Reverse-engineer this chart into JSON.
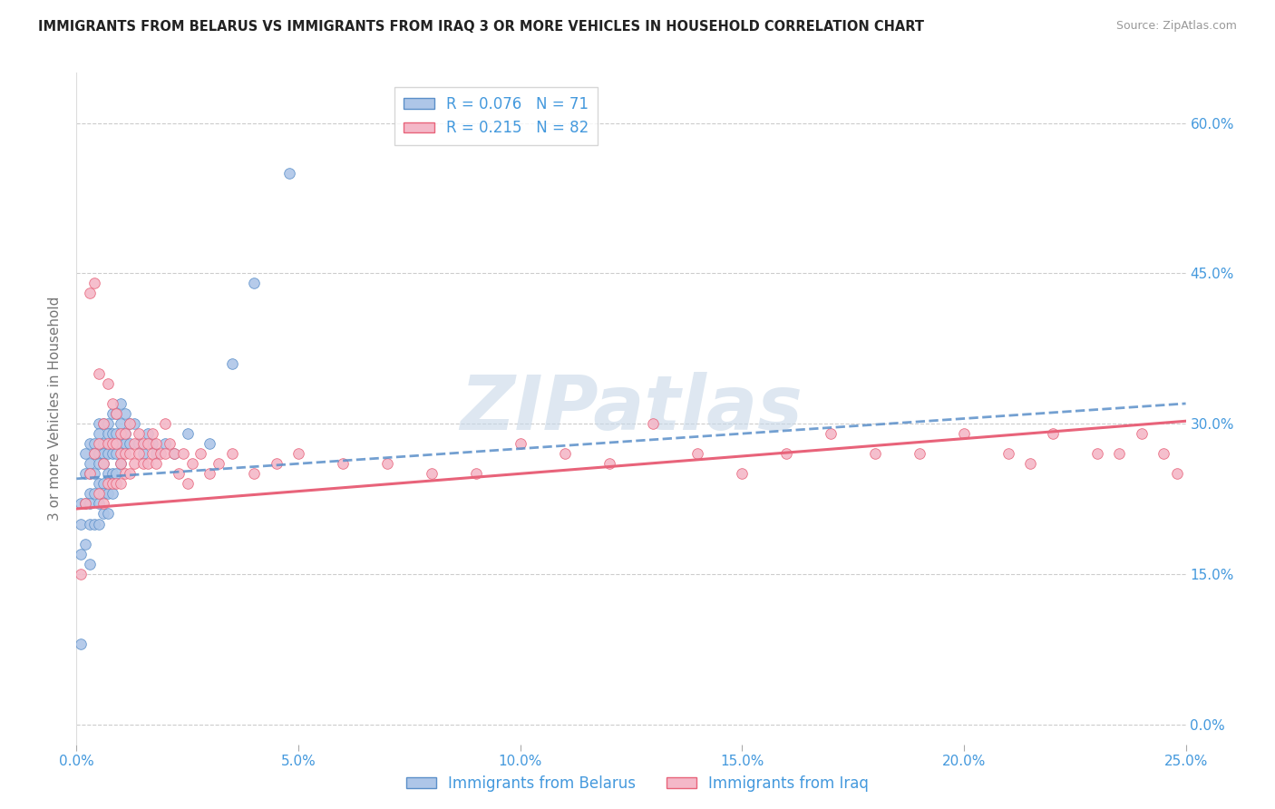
{
  "title": "IMMIGRANTS FROM BELARUS VS IMMIGRANTS FROM IRAQ 3 OR MORE VEHICLES IN HOUSEHOLD CORRELATION CHART",
  "source": "Source: ZipAtlas.com",
  "ylabel": "3 or more Vehicles in Household",
  "legend_label_1": "Immigrants from Belarus",
  "legend_label_2": "Immigrants from Iraq",
  "R1": 0.076,
  "N1": 71,
  "R2": 0.215,
  "N2": 82,
  "xlim": [
    0.0,
    0.25
  ],
  "ylim": [
    -0.02,
    0.65
  ],
  "xticks": [
    0.0,
    0.05,
    0.1,
    0.15,
    0.2,
    0.25
  ],
  "yticks": [
    0.0,
    0.15,
    0.3,
    0.45,
    0.6
  ],
  "ytick_labels": [
    "0.0%",
    "15.0%",
    "30.0%",
    "45.0%",
    "60.0%"
  ],
  "xtick_labels": [
    "0.0%",
    "5.0%",
    "10.0%",
    "15.0%",
    "20.0%",
    "25.0%"
  ],
  "color_belarus": "#aec6e8",
  "color_iraq": "#f4b8c8",
  "color_line_belarus": "#5b8fc9",
  "color_line_iraq": "#e8637a",
  "color_axis_text": "#4499dd",
  "background": "#ffffff",
  "watermark": "ZIPatlas",
  "watermark_color": "#c8d8e8",
  "belarus_x": [
    0.001,
    0.001,
    0.001,
    0.001,
    0.002,
    0.002,
    0.002,
    0.002,
    0.003,
    0.003,
    0.003,
    0.003,
    0.003,
    0.003,
    0.003,
    0.004,
    0.004,
    0.004,
    0.004,
    0.004,
    0.005,
    0.005,
    0.005,
    0.005,
    0.005,
    0.005,
    0.005,
    0.006,
    0.006,
    0.006,
    0.006,
    0.006,
    0.006,
    0.006,
    0.007,
    0.007,
    0.007,
    0.007,
    0.007,
    0.007,
    0.008,
    0.008,
    0.008,
    0.008,
    0.008,
    0.009,
    0.009,
    0.009,
    0.009,
    0.01,
    0.01,
    0.01,
    0.01,
    0.011,
    0.011,
    0.011,
    0.012,
    0.012,
    0.013,
    0.014,
    0.015,
    0.016,
    0.017,
    0.018,
    0.02,
    0.022,
    0.025,
    0.03,
    0.035,
    0.04,
    0.048
  ],
  "belarus_y": [
    0.22,
    0.2,
    0.17,
    0.08,
    0.27,
    0.25,
    0.22,
    0.18,
    0.28,
    0.26,
    0.25,
    0.23,
    0.22,
    0.2,
    0.16,
    0.28,
    0.27,
    0.25,
    0.23,
    0.2,
    0.3,
    0.29,
    0.27,
    0.26,
    0.24,
    0.22,
    0.2,
    0.3,
    0.28,
    0.27,
    0.26,
    0.24,
    0.23,
    0.21,
    0.3,
    0.29,
    0.27,
    0.25,
    0.23,
    0.21,
    0.31,
    0.29,
    0.27,
    0.25,
    0.23,
    0.31,
    0.29,
    0.27,
    0.25,
    0.32,
    0.3,
    0.28,
    0.26,
    0.31,
    0.29,
    0.28,
    0.3,
    0.28,
    0.3,
    0.28,
    0.27,
    0.29,
    0.28,
    0.27,
    0.28,
    0.27,
    0.29,
    0.28,
    0.36,
    0.44,
    0.55
  ],
  "iraq_x": [
    0.001,
    0.002,
    0.003,
    0.003,
    0.004,
    0.004,
    0.005,
    0.005,
    0.005,
    0.006,
    0.006,
    0.006,
    0.007,
    0.007,
    0.007,
    0.008,
    0.008,
    0.008,
    0.009,
    0.009,
    0.009,
    0.01,
    0.01,
    0.01,
    0.01,
    0.011,
    0.011,
    0.011,
    0.012,
    0.012,
    0.012,
    0.013,
    0.013,
    0.014,
    0.014,
    0.015,
    0.015,
    0.016,
    0.016,
    0.017,
    0.017,
    0.018,
    0.018,
    0.019,
    0.02,
    0.02,
    0.021,
    0.022,
    0.023,
    0.024,
    0.025,
    0.026,
    0.028,
    0.03,
    0.032,
    0.035,
    0.04,
    0.045,
    0.05,
    0.06,
    0.07,
    0.08,
    0.09,
    0.1,
    0.11,
    0.12,
    0.13,
    0.14,
    0.15,
    0.16,
    0.17,
    0.18,
    0.19,
    0.2,
    0.21,
    0.215,
    0.22,
    0.23,
    0.235,
    0.24,
    0.245,
    0.248
  ],
  "iraq_y": [
    0.15,
    0.22,
    0.43,
    0.25,
    0.44,
    0.27,
    0.35,
    0.28,
    0.23,
    0.3,
    0.26,
    0.22,
    0.34,
    0.28,
    0.24,
    0.32,
    0.28,
    0.24,
    0.31,
    0.28,
    0.24,
    0.29,
    0.27,
    0.26,
    0.24,
    0.29,
    0.27,
    0.25,
    0.3,
    0.27,
    0.25,
    0.28,
    0.26,
    0.29,
    0.27,
    0.28,
    0.26,
    0.28,
    0.26,
    0.29,
    0.27,
    0.28,
    0.26,
    0.27,
    0.3,
    0.27,
    0.28,
    0.27,
    0.25,
    0.27,
    0.24,
    0.26,
    0.27,
    0.25,
    0.26,
    0.27,
    0.25,
    0.26,
    0.27,
    0.26,
    0.26,
    0.25,
    0.25,
    0.28,
    0.27,
    0.26,
    0.3,
    0.27,
    0.25,
    0.27,
    0.29,
    0.27,
    0.27,
    0.29,
    0.27,
    0.26,
    0.29,
    0.27,
    0.27,
    0.29,
    0.27,
    0.25
  ]
}
